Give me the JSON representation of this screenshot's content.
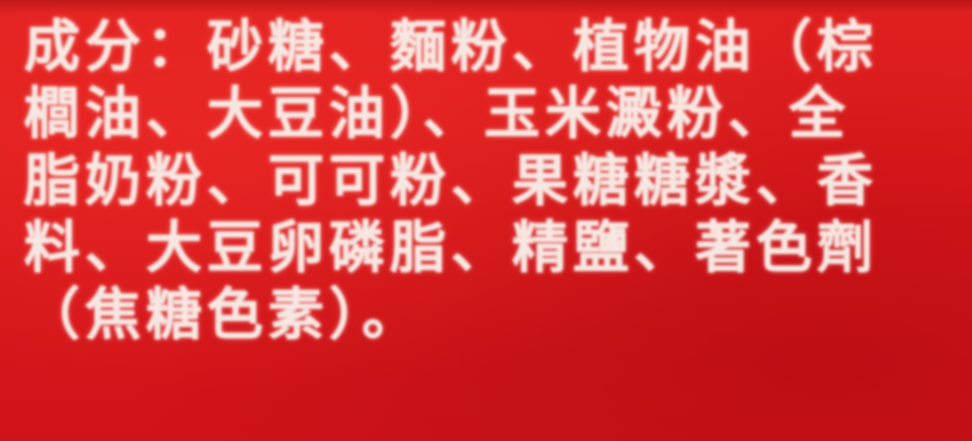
{
  "label_text": {
    "lines": [
      "成分：砂糖、麵粉、植物油（棕",
      "櫚油、大豆油）、玉米澱粉、全",
      "脂奶粉、可可粉、果糖糖漿、香",
      "料、大豆卵磷脂、精鹽、著色劑",
      "（焦糖色素）。"
    ]
  },
  "colors": {
    "background": "#d9191c",
    "text": "#f7e7e2"
  }
}
